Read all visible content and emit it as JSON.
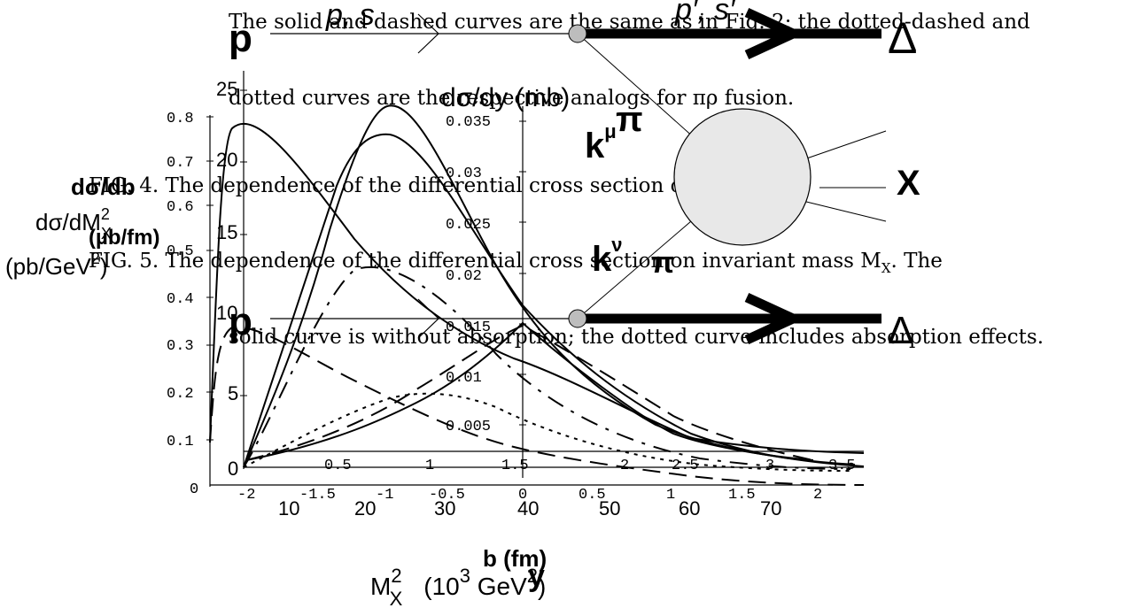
{
  "text_lines": [
    "The solid and dashed curves are the same as in Fig. 2; the dotted-dashed and",
    "dotted curves are the respective analogs for πρ fusion.",
    "FIG. 4.   The dependence of the differential cross section on rapidity y.",
    "FIG. 5.   The dependence of the differential cross section on invariant mass M",
    "solid curve is without absorption; the dotted curve includes absorption effects."
  ],
  "mx_sub": "X",
  "mx_tail": ". The",
  "diagram": {
    "p_top": "p",
    "ps_in": "p, s",
    "ps_out": "p′, s′",
    "delta_top": "Δ",
    "pi_top": "π",
    "k_mu": "k",
    "mu": "μ",
    "X": "X",
    "k_nu": "k",
    "nu": "ν",
    "pi_bottom": "π",
    "p_bottom": "p",
    "delta_bottom": "Δ"
  },
  "charts": {
    "rapidity": {
      "ylabel": "dσ/dy (mb)",
      "xlabel": "y",
      "yticks": [
        "0.005",
        "0.01",
        "0.015",
        "0.02",
        "0.025",
        "0.03",
        "0.035"
      ],
      "xticks": [
        "-2",
        "-1.5",
        "-1",
        "-0.5",
        "0",
        "0.5",
        "1",
        "1.5",
        "2"
      ]
    },
    "mass": {
      "ylabel_top": "dσ/dM",
      "ylabel_sup": "2",
      "ylabel_sub": "X",
      "ylabel_unit": "(pb/GeV",
      "ylabel_unit_sup": "2",
      "ylabel_unit_end": ")",
      "yticks": [
        "0",
        "5",
        "10",
        "15",
        "20",
        "25"
      ],
      "xticks": [
        "10",
        "20",
        "30",
        "40",
        "50",
        "60",
        "70"
      ],
      "xlabel_m": "M",
      "xlabel_sup": "2",
      "xlabel_sub": "X",
      "xlabel_unit": "(10",
      "xlabel_unit_sup": "3",
      "xlabel_unit_end": " GeV",
      "xlabel_unit_sup2": "2",
      "xlabel_unit_close": ")"
    },
    "impact": {
      "ylabel_top": "dσ/db",
      "ylabel_unit": "(µb/fm)",
      "xlabel": "b (fm)",
      "yticks": [
        "0",
        "0.1",
        "0.2",
        "0.3",
        "0.4",
        "0.5",
        "0.6",
        "0.7",
        "0.8"
      ],
      "xticks": [
        "0.5",
        "1",
        "1.5",
        "2",
        "2.5",
        "3",
        "3.5"
      ]
    }
  }
}
